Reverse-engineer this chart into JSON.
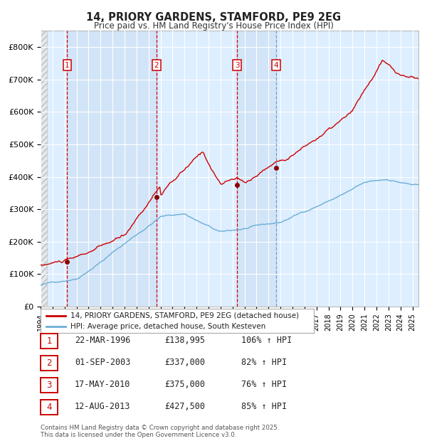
{
  "title_line1": "14, PRIORY GARDENS, STAMFORD, PE9 2EG",
  "title_line2": "Price paid vs. HM Land Registry's House Price Index (HPI)",
  "xlim_start": 1994.0,
  "xlim_end": 2025.5,
  "ylim_min": 0,
  "ylim_max": 850000,
  "ytick_values": [
    0,
    100000,
    200000,
    300000,
    400000,
    500000,
    600000,
    700000,
    800000
  ],
  "ytick_labels": [
    "£0",
    "£100K",
    "£200K",
    "£300K",
    "£400K",
    "£500K",
    "£600K",
    "£700K",
    "£800K"
  ],
  "hpi_color": "#6baed6",
  "price_color": "#cc0000",
  "bg_color": "#ddeeff",
  "grid_color": "#ffffff",
  "transactions": [
    {
      "num": 1,
      "year": 1996.22,
      "price": 138995,
      "label": "22-MAR-1996",
      "price_str": "£138,995",
      "pct": "106%",
      "line_color": "#cc0000"
    },
    {
      "num": 2,
      "year": 2003.67,
      "price": 337000,
      "label": "01-SEP-2003",
      "price_str": "£337,000",
      "pct": "82%",
      "line_color": "#cc0000"
    },
    {
      "num": 3,
      "year": 2010.38,
      "price": 375000,
      "label": "17-MAY-2010",
      "price_str": "£375,000",
      "pct": "76%",
      "line_color": "#cc0000"
    },
    {
      "num": 4,
      "year": 2013.62,
      "price": 427500,
      "label": "12-AUG-2013",
      "price_str": "£427,500",
      "pct": "85%",
      "line_color": "#7799cc"
    }
  ],
  "legend_label_red": "14, PRIORY GARDENS, STAMFORD, PE9 2EG (detached house)",
  "legend_label_blue": "HPI: Average price, detached house, South Kesteven",
  "footer_text": "Contains HM Land Registry data © Crown copyright and database right 2025.\nThis data is licensed under the Open Government Licence v3.0.",
  "xtick_years": [
    1994,
    1995,
    1996,
    1997,
    1998,
    1999,
    2000,
    2001,
    2002,
    2003,
    2004,
    2005,
    2006,
    2007,
    2008,
    2009,
    2010,
    2011,
    2012,
    2013,
    2014,
    2015,
    2016,
    2017,
    2018,
    2019,
    2020,
    2021,
    2022,
    2023,
    2024,
    2025
  ]
}
